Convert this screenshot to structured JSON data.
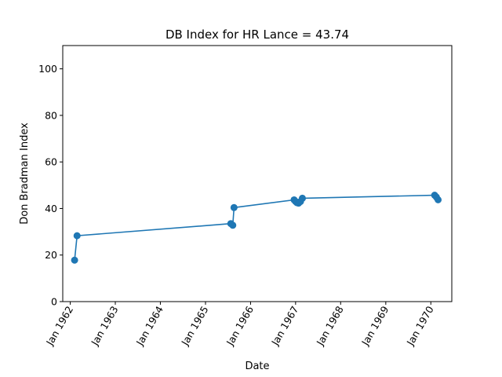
{
  "chart_data": {
    "type": "line",
    "title": "DB Index for HR Lance = 43.74",
    "xlabel": "Date",
    "ylabel": "Don Bradman Index",
    "ylim": [
      0,
      110
    ],
    "xlim": [
      "1961-11-01",
      "1970-06-20"
    ],
    "yticks": [
      0,
      20,
      40,
      60,
      80,
      100
    ],
    "xticks": [
      {
        "date": "1962-01-01",
        "label": "Jan 1962"
      },
      {
        "date": "1963-01-01",
        "label": "Jan 1963"
      },
      {
        "date": "1964-01-01",
        "label": "Jan 1964"
      },
      {
        "date": "1965-01-01",
        "label": "Jan 1965"
      },
      {
        "date": "1966-01-01",
        "label": "Jan 1966"
      },
      {
        "date": "1967-01-01",
        "label": "Jan 1967"
      },
      {
        "date": "1968-01-01",
        "label": "Jan 1968"
      },
      {
        "date": "1969-01-01",
        "label": "Jan 1969"
      },
      {
        "date": "1970-01-01",
        "label": "Jan 1970"
      }
    ],
    "grid": false,
    "line_color": "#1f77b4",
    "marker": "circle",
    "series": [
      {
        "x": [
          "1962-02-05",
          "1962-02-25",
          "1965-07-25",
          "1965-08-10",
          "1965-08-20",
          "1966-12-20",
          "1967-01-01",
          "1967-01-12",
          "1967-01-25",
          "1967-02-10",
          "1967-02-25",
          "1970-02-01",
          "1970-02-15",
          "1970-03-01"
        ],
        "y": [
          17.8,
          28.3,
          33.5,
          32.8,
          40.4,
          43.7,
          43.0,
          42.5,
          42.3,
          43.0,
          44.4,
          45.7,
          44.9,
          43.74
        ]
      }
    ]
  }
}
